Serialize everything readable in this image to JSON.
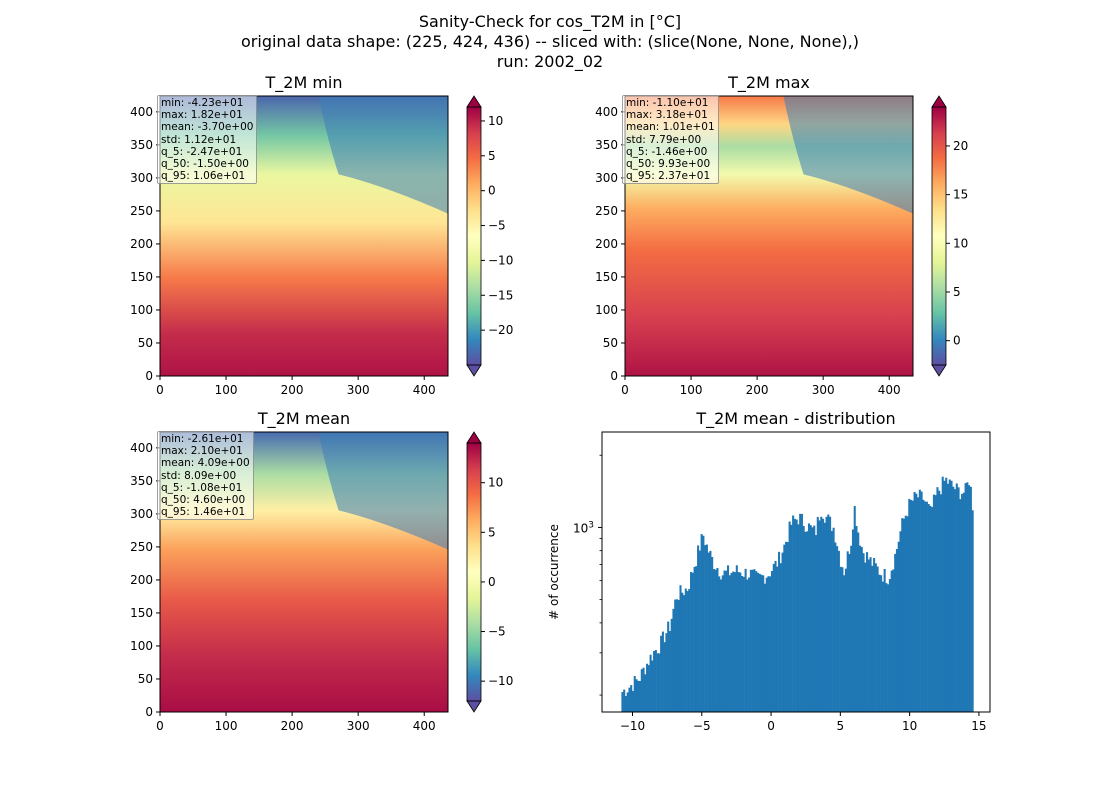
{
  "figure": {
    "title_lines": [
      "Sanity-Check for cos_T2M in [°C]",
      "original data shape: (225, 424, 436) -- sliced with: (slice(None, None, None),)",
      "run: 2002_02"
    ]
  },
  "colors": {
    "colormap": [
      "#5e4fa2",
      "#3288bd",
      "#66c2a5",
      "#abdda4",
      "#e6f598",
      "#ffffbf",
      "#fee08b",
      "#fdae61",
      "#f46d43",
      "#d53e4f",
      "#9e0142"
    ],
    "histogram": "#1f77b4"
  },
  "chart_data": [
    {
      "type": "heatmap",
      "title": "T_2M min",
      "xlim": [
        0,
        436
      ],
      "ylim": [
        0,
        424
      ],
      "xticks": [
        "0",
        "100",
        "200",
        "300",
        "400"
      ],
      "yticks": [
        "0",
        "50",
        "100",
        "150",
        "200",
        "250",
        "300",
        "350",
        "400"
      ],
      "colorbar": {
        "range": [
          -25,
          12
        ],
        "ticks": [
          "10",
          "5",
          "0",
          "−5",
          "−10",
          "−15",
          "−20"
        ],
        "tick_values": [
          10,
          5,
          0,
          -5,
          -10,
          -15,
          -20
        ],
        "extend": "both"
      },
      "stats": [
        "min: -4.23e+01",
        "max: 1.82e+01",
        "mean: -3.70e+00",
        "std: 1.12e+01",
        "q_5: -2.47e+01",
        "q_50: -1.50e+00",
        "q_95: 1.06e+01"
      ]
    },
    {
      "type": "heatmap",
      "title": "T_2M max",
      "xlim": [
        0,
        436
      ],
      "ylim": [
        0,
        424
      ],
      "xticks": [
        "0",
        "100",
        "200",
        "300",
        "400"
      ],
      "yticks": [
        "0",
        "50",
        "100",
        "150",
        "200",
        "250",
        "300",
        "350",
        "400"
      ],
      "colorbar": {
        "range": [
          -2.5,
          24
        ],
        "ticks": [
          "20",
          "15",
          "10",
          "5",
          "0"
        ],
        "tick_values": [
          20,
          15,
          10,
          5,
          0
        ],
        "extend": "both"
      },
      "stats": [
        "min: -1.10e+01",
        "max: 3.18e+01",
        "mean: 1.01e+01",
        "std: 7.79e+00",
        "q_5: -1.46e+00",
        "q_50: 9.93e+00",
        "q_95: 2.37e+01"
      ]
    },
    {
      "type": "heatmap",
      "title": "T_2M mean",
      "xlim": [
        0,
        436
      ],
      "ylim": [
        0,
        424
      ],
      "xticks": [
        "0",
        "100",
        "200",
        "300",
        "400"
      ],
      "yticks": [
        "0",
        "50",
        "100",
        "150",
        "200",
        "250",
        "300",
        "350",
        "400"
      ],
      "colorbar": {
        "range": [
          -12,
          14
        ],
        "ticks": [
          "10",
          "5",
          "0",
          "−5",
          "−10"
        ],
        "tick_values": [
          10,
          5,
          0,
          -5,
          -10
        ],
        "extend": "both"
      },
      "stats": [
        "min: -2.61e+01",
        "max: 2.10e+01",
        "mean: 4.09e+00",
        "std: 8.09e+00",
        "q_5: -1.08e+01",
        "q_50: 4.60e+00",
        "q_95: 1.46e+01"
      ]
    },
    {
      "type": "bar",
      "title": "T_2M mean - distribution",
      "xlabel": "",
      "ylabel": "# of occurrence",
      "yscale": "log",
      "xlim": [
        -12.2,
        15.8
      ],
      "ylim": [
        170,
        2500
      ],
      "xticks": [
        "−10",
        "−5",
        "0",
        "5",
        "10",
        "15"
      ],
      "xtick_values": [
        -10,
        -5,
        0,
        5,
        10,
        15
      ],
      "yticks": [
        "10³"
      ],
      "ytick_values": [
        1000
      ],
      "x_range": [
        -10.8,
        14.6
      ],
      "bin_width": 0.127,
      "anchors": [
        [
          -10.8,
          205
        ],
        [
          -10.3,
          215
        ],
        [
          -9.5,
          235
        ],
        [
          -8.5,
          300
        ],
        [
          -8.0,
          325
        ],
        [
          -7.3,
          390
        ],
        [
          -6.8,
          520
        ],
        [
          -6.0,
          560
        ],
        [
          -5.4,
          740
        ],
        [
          -4.9,
          930
        ],
        [
          -4.6,
          820
        ],
        [
          -4.2,
          720
        ],
        [
          -3.5,
          640
        ],
        [
          -2.5,
          660
        ],
        [
          -1.5,
          640
        ],
        [
          -1.0,
          610
        ],
        [
          -0.2,
          640
        ],
        [
          0.5,
          720
        ],
        [
          1.0,
          850
        ],
        [
          1.5,
          1050
        ],
        [
          2.0,
          1100
        ],
        [
          2.6,
          1020
        ],
        [
          3.2,
          950
        ],
        [
          3.6,
          1200
        ],
        [
          4.0,
          1100
        ],
        [
          4.5,
          1000
        ],
        [
          5.0,
          740
        ],
        [
          5.3,
          650
        ],
        [
          5.8,
          900
        ],
        [
          6.0,
          1230
        ],
        [
          6.3,
          950
        ],
        [
          6.6,
          800
        ],
        [
          7.2,
          720
        ],
        [
          8.0,
          640
        ],
        [
          8.5,
          620
        ],
        [
          9.0,
          780
        ],
        [
          9.5,
          1050
        ],
        [
          10.0,
          1250
        ],
        [
          10.5,
          1350
        ],
        [
          11.0,
          1320
        ],
        [
          11.5,
          1150
        ],
        [
          12.0,
          1400
        ],
        [
          12.6,
          1580
        ],
        [
          13.0,
          1500
        ],
        [
          13.5,
          1420
        ],
        [
          14.0,
          1400
        ],
        [
          14.3,
          1600
        ],
        [
          14.6,
          1150
        ]
      ]
    }
  ]
}
